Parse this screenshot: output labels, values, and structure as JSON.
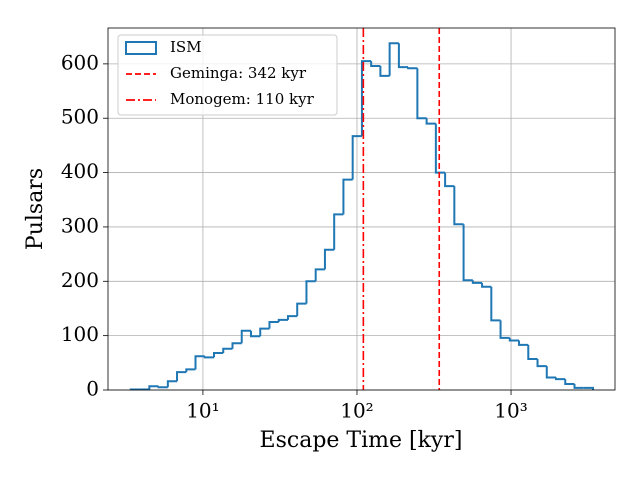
{
  "chart_data": {
    "type": "histogram",
    "xlabel": "Escape Time [kyr]",
    "ylabel": "Pulsars",
    "xscale": "log",
    "grid": true,
    "legend": "upper left",
    "name": "ISM",
    "color": "#1f77b4",
    "bins": [
      3.4,
      3.91,
      4.49,
      5.15,
      5.92,
      6.79,
      7.8,
      8.95,
      10.28,
      11.8,
      13.55,
      15.56,
      17.86,
      20.51,
      23.55,
      27.04,
      31.05,
      35.65,
      40.93,
      46.99,
      53.95,
      61.94,
      71.12,
      81.66,
      93.76,
      107.7,
      123.6,
      141.9,
      162.9,
      187.1,
      214.8,
      246.6,
      283.1,
      325.1,
      373.3,
      428.5,
      492.0,
      564.9,
      648.6,
      744.7,
      855.1,
      981.7,
      1127,
      1294,
      1486,
      1706,
      1959,
      2249,
      2582,
      2965,
      3404
    ],
    "counts": [
      1,
      1,
      7,
      5,
      16,
      33,
      38,
      62,
      60,
      68,
      76,
      86,
      109,
      99,
      113,
      125,
      129,
      136,
      159,
      200,
      222,
      258,
      323,
      387,
      467,
      605,
      596,
      578,
      638,
      594,
      592,
      500,
      490,
      400,
      375,
      305,
      202,
      197,
      190,
      128,
      96,
      91,
      83,
      57,
      44,
      23,
      20,
      11,
      4,
      4
    ],
    "vlines": [
      {
        "x": 342,
        "label": "Geminga: 342 kyr",
        "color": "#ff0000",
        "style": "dashed"
      },
      {
        "x": 110,
        "label": "Monogem: 110 kyr",
        "color": "#ff0000",
        "style": "dashdot"
      }
    ],
    "xlim": [
      2.42,
      4730
    ],
    "ylim": [
      0,
      666
    ],
    "xticks": [
      {
        "value": 10,
        "label": "10¹"
      },
      {
        "value": 100,
        "label": "10²"
      },
      {
        "value": 1000,
        "label": "10³"
      }
    ],
    "yticks": [
      0,
      100,
      200,
      300,
      400,
      500,
      600
    ]
  }
}
